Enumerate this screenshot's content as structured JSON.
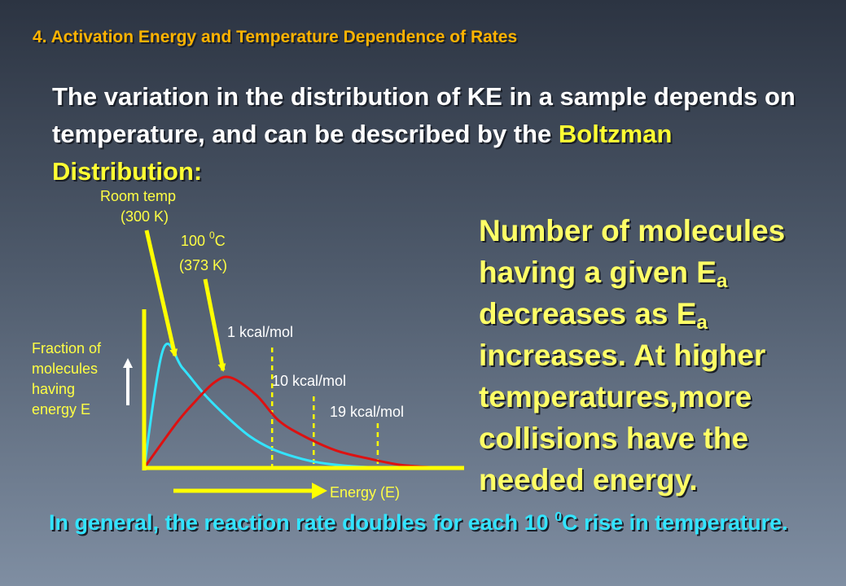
{
  "slide": {
    "title": "4. Activation Energy and Temperature Dependence of Rates",
    "intro_part1": "The variation in the distribution of KE in a sample depends on temperature, and can be described by the ",
    "intro_highlight": "Boltzman Distribution:",
    "side_note": {
      "line1": "Number of molecules",
      "line2_pre": "having a given E",
      "line2_sub": "a",
      "line3_pre": "decreases as E",
      "line3_sub": "a",
      "line4": "increases. At higher",
      "line5": "temperatures,more",
      "line6": "collisions have the",
      "line7": "needed energy."
    },
    "footer_pre": "In general, the reaction rate doubles for each 10 ",
    "footer_sup": "0",
    "footer_post": "C rise in temperature."
  },
  "colors": {
    "title": "#ffb300",
    "highlight": "#ffff33",
    "side_note": "#ffff66",
    "footer": "#33e4ff",
    "room_temp_curve": "#33e4ff",
    "hot_curve": "#dd1111",
    "axes": "#ffff00",
    "arrows": "#ffff00"
  },
  "chart_data": {
    "type": "line",
    "xlabel": "Energy (E)",
    "ylabel": [
      "Fraction of",
      "molecules",
      "having",
      "energy E"
    ],
    "annotations": {
      "room_temp_line1": "Room temp",
      "room_temp_line2": "(300 K)",
      "hot_line1_pre": "100 ",
      "hot_line1_sup": "0",
      "hot_line1_post": "C",
      "hot_line2": "(373 K)"
    },
    "thresholds": [
      {
        "label": "1 kcal/mol",
        "x": 4.0
      },
      {
        "label": "10 kcal/mol",
        "x": 5.3
      },
      {
        "label": "19 kcal/mol",
        "x": 7.3
      }
    ],
    "xlim": [
      0,
      10
    ],
    "ylim": [
      0,
      10
    ],
    "series": [
      {
        "temperature": "300 K",
        "color": "#33e4ff",
        "x": [
          0,
          0.6,
          1.2,
          1.9,
          2.6,
          3.3,
          4.0,
          4.7,
          5.3,
          6.0,
          7.0,
          8.0,
          9.0
        ],
        "y": [
          0,
          7.5,
          6.3,
          4.6,
          3.2,
          2.0,
          1.2,
          0.7,
          0.4,
          0.2,
          0.05,
          0.02,
          0
        ]
      },
      {
        "temperature": "373 K",
        "color": "#dd1111",
        "x": [
          0,
          1.0,
          1.6,
          2.2,
          2.7,
          3.5,
          4.2,
          5.0,
          6.0,
          7.0,
          8.0,
          9.0,
          10.0
        ],
        "y": [
          0,
          2.8,
          4.2,
          5.4,
          5.7,
          4.6,
          3.0,
          2.0,
          1.1,
          0.6,
          0.2,
          0.05,
          0
        ]
      }
    ]
  }
}
